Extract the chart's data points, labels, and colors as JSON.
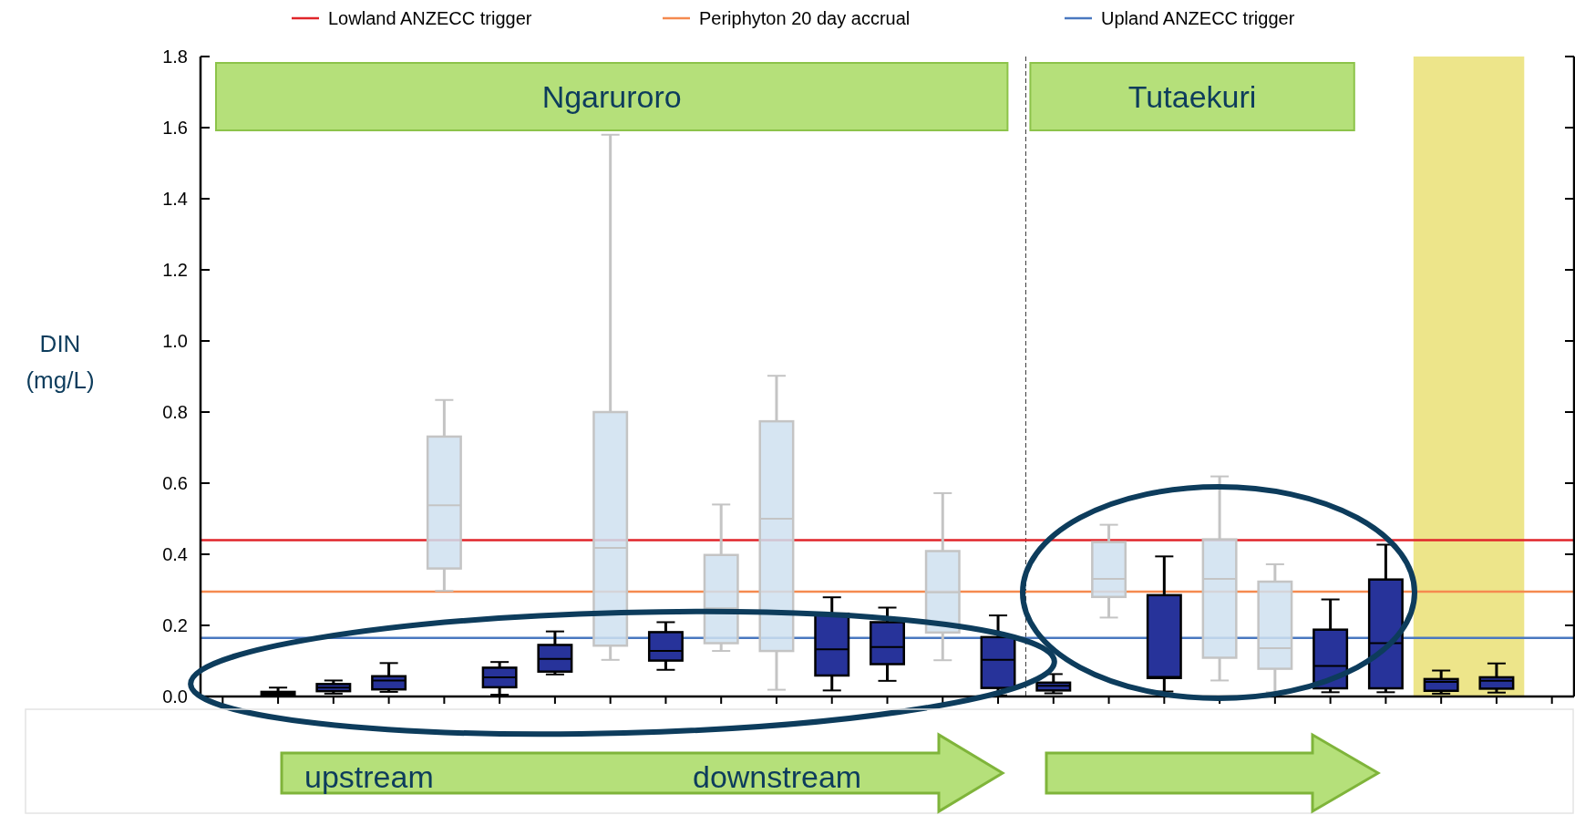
{
  "chart_data": {
    "type": "box",
    "ylabel": "DIN (mg/L)",
    "categories": [
      null,
      null,
      null,
      null,
      null,
      null,
      null,
      null,
      null,
      null,
      null,
      null,
      null,
      null,
      null,
      null,
      null,
      null,
      null,
      null,
      null,
      null,
      null,
      null,
      null
    ],
    "ylim": [
      0,
      1.8
    ],
    "yticks": [
      {
        "value": 0,
        "label": "0.0"
      },
      0.2,
      0.4,
      0.6,
      0.8,
      {
        "value": 1,
        "label": "1.0"
      },
      1.2,
      1.4,
      1.6,
      1.8
    ],
    "tick_labels": "y",
    "grid": false,
    "legend": "top",
    "series": [
      {
        "color": "#27339a",
        "boxes": [
          null,
          {
            "low": 0.004,
            "q1": 0.005,
            "median": 0.008,
            "q3": 0.013,
            "high": 0.025
          },
          {
            "low": 0.008,
            "q1": 0.015,
            "median": 0.025,
            "q3": 0.035,
            "high": 0.045
          },
          {
            "low": 0.013,
            "q1": 0.02,
            "median": 0.045,
            "q3": 0.057,
            "high": 0.094
          },
          null,
          {
            "low": 0.005,
            "q1": 0.026,
            "median": 0.054,
            "q3": 0.081,
            "high": 0.097
          },
          {
            "low": 0.062,
            "q1": 0.07,
            "median": 0.106,
            "q3": 0.145,
            "high": 0.183
          },
          null,
          {
            "low": 0.075,
            "q1": 0.101,
            "median": 0.128,
            "q3": 0.181,
            "high": 0.209
          },
          null,
          null,
          {
            "low": 0.017,
            "q1": 0.059,
            "median": 0.133,
            "q3": 0.233,
            "high": 0.279
          },
          {
            "low": 0.044,
            "q1": 0.091,
            "median": 0.139,
            "q3": 0.209,
            "high": 0.25
          },
          null,
          {
            "low": 0.003,
            "q1": 0.024,
            "median": 0.103,
            "q3": 0.167,
            "high": 0.228
          },
          {
            "low": 0.009,
            "q1": 0.017,
            "median": 0.03,
            "q3": 0.039,
            "high": 0.063
          },
          null,
          {
            "low": 0.014,
            "q1": 0.052,
            "median": 0.055,
            "q3": 0.285,
            "high": 0.394
          },
          null,
          null,
          {
            "low": 0.012,
            "q1": 0.023,
            "median": 0.086,
            "q3": 0.188,
            "high": 0.273
          },
          {
            "low": 0.012,
            "q1": 0.023,
            "median": 0.15,
            "q3": 0.329,
            "high": 0.427
          },
          {
            "low": 0.008,
            "q1": 0.016,
            "median": 0.041,
            "q3": 0.049,
            "high": 0.073
          },
          {
            "low": 0.011,
            "q1": 0.022,
            "median": 0.044,
            "q3": 0.054,
            "high": 0.093
          },
          null
        ]
      },
      {
        "color": "#cfe1f0",
        "boxes": [
          null,
          null,
          null,
          null,
          {
            "low": 0.297,
            "q1": 0.36,
            "median": 0.538,
            "q3": 0.731,
            "high": 0.834
          },
          null,
          null,
          {
            "low": 0.103,
            "q1": 0.143,
            "median": 0.418,
            "q3": 0.8,
            "high": 1.58
          },
          null,
          {
            "low": 0.128,
            "q1": 0.15,
            "median": 0.248,
            "q3": 0.398,
            "high": 0.54
          },
          {
            "low": 0.019,
            "q1": 0.128,
            "median": 0.5,
            "q3": 0.774,
            "high": 0.902
          },
          null,
          null,
          {
            "low": 0.102,
            "q1": 0.18,
            "median": 0.293,
            "q3": 0.409,
            "high": 0.572
          },
          null,
          null,
          {
            "low": 0.222,
            "q1": 0.28,
            "median": 0.331,
            "q3": 0.434,
            "high": 0.483
          },
          null,
          {
            "low": 0.045,
            "q1": 0.109,
            "median": 0.331,
            "q3": 0.442,
            "high": 0.619
          },
          {
            "low": 0.012,
            "q1": 0.078,
            "median": 0.136,
            "q3": 0.323,
            "high": 0.372
          },
          null,
          null,
          null,
          null,
          null
        ]
      }
    ],
    "ref_lines": [
      {
        "axis": "y",
        "value": 0.44,
        "label": "Lowland ANZECC trigger",
        "color": "#e0252a"
      },
      {
        "axis": "y",
        "value": 0.295,
        "label": "Periphyton 20 day accrual",
        "color": "#f58a4f"
      },
      {
        "axis": "y",
        "value": 0.165,
        "label": "Upland ANZECC trigger",
        "color": "#4a78c0"
      }
    ],
    "annotations": [
      "Ngaruroro",
      "Tutaekuri",
      "upstream",
      "downstream"
    ]
  }
}
